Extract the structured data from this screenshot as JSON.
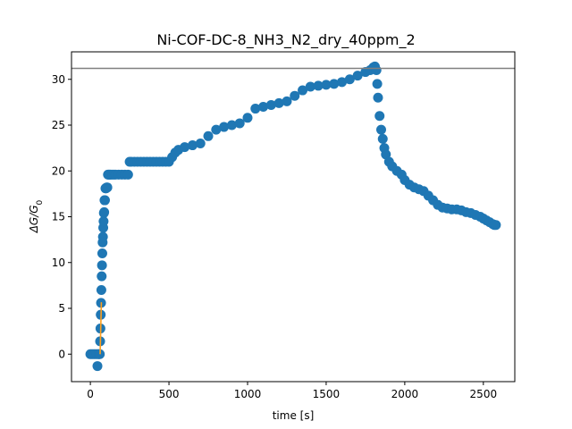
{
  "chart_data": {
    "type": "scatter",
    "title": "Ni-COF-DC-8_NH3_N2_dry_40ppm_2",
    "xlabel": "time [s]",
    "ylabel": "ΔG/G",
    "ylabel_subscript": "0",
    "xlim": [
      -120,
      2700
    ],
    "ylim": [
      -3,
      33
    ],
    "xticks": [
      0,
      500,
      1000,
      1500,
      2000,
      2500
    ],
    "yticks": [
      0,
      5,
      10,
      15,
      20,
      25,
      30
    ],
    "grid": false,
    "series": [
      {
        "color": "#1f77b4",
        "marker": "circle",
        "x": [
          0,
          10,
          20,
          30,
          40,
          45,
          50,
          55,
          60,
          62,
          64,
          66,
          68,
          70,
          72,
          74,
          76,
          78,
          80,
          82,
          84,
          86,
          88,
          90,
          93,
          96,
          100,
          104,
          108,
          112,
          116,
          120,
          125,
          130,
          140,
          150,
          160,
          180,
          200,
          220,
          240,
          250,
          260,
          280,
          300,
          320,
          340,
          360,
          380,
          400,
          420,
          440,
          460,
          480,
          500,
          520,
          540,
          560,
          600,
          650,
          700,
          750,
          800,
          850,
          900,
          950,
          1000,
          1050,
          1100,
          1150,
          1200,
          1250,
          1300,
          1350,
          1400,
          1450,
          1500,
          1550,
          1600,
          1650,
          1700,
          1750,
          1780,
          1800,
          1810,
          1820,
          1825,
          1830,
          1840,
          1850,
          1860,
          1870,
          1880,
          1900,
          1920,
          1950,
          1980,
          2000,
          2030,
          2060,
          2090,
          2120,
          2150,
          2180,
          2210,
          2240,
          2270,
          2300,
          2330,
          2360,
          2390,
          2420,
          2450,
          2480,
          2500,
          2520,
          2540,
          2560,
          2570,
          2580
        ],
        "y": [
          0,
          0,
          0,
          0,
          0,
          -1.3,
          0,
          0,
          0,
          1.4,
          2.8,
          4.3,
          5.6,
          7.0,
          8.5,
          9.7,
          11.0,
          12.2,
          12.8,
          13.8,
          14.5,
          15.4,
          15.5,
          16.8,
          16.8,
          18.1,
          18.1,
          18.2,
          18.2,
          19.6,
          19.6,
          19.6,
          19.6,
          19.6,
          19.6,
          19.6,
          19.6,
          19.6,
          19.6,
          19.6,
          19.6,
          21.0,
          21.0,
          21.0,
          21.0,
          21.0,
          21.0,
          21.0,
          21.0,
          21.0,
          21.0,
          21.0,
          21.0,
          21.0,
          21.0,
          21.5,
          22.0,
          22.3,
          22.6,
          22.8,
          23.0,
          23.8,
          24.5,
          24.8,
          25.0,
          25.2,
          25.8,
          26.8,
          27.0,
          27.2,
          27.4,
          27.6,
          28.2,
          28.8,
          29.2,
          29.3,
          29.4,
          29.5,
          29.7,
          30.0,
          30.4,
          30.8,
          31.0,
          31.3,
          31.4,
          31.0,
          29.5,
          28.0,
          26.0,
          24.5,
          23.5,
          22.5,
          21.8,
          21.0,
          20.5,
          20.0,
          19.6,
          19.0,
          18.5,
          18.2,
          18.0,
          17.8,
          17.3,
          16.8,
          16.3,
          16.0,
          15.9,
          15.8,
          15.8,
          15.7,
          15.5,
          15.4,
          15.2,
          15.0,
          14.8,
          14.6,
          14.4,
          14.2,
          14.1,
          14.1
        ]
      },
      {
        "color": "#ff9f1c",
        "marker": "line",
        "x": [
          62,
          64,
          66,
          68,
          70,
          72,
          74
        ],
        "y": [
          0,
          1.4,
          2.8,
          4.3,
          5.6,
          5.6,
          5.6
        ]
      }
    ],
    "hline": {
      "y": 31.2,
      "color": "#808080"
    }
  }
}
